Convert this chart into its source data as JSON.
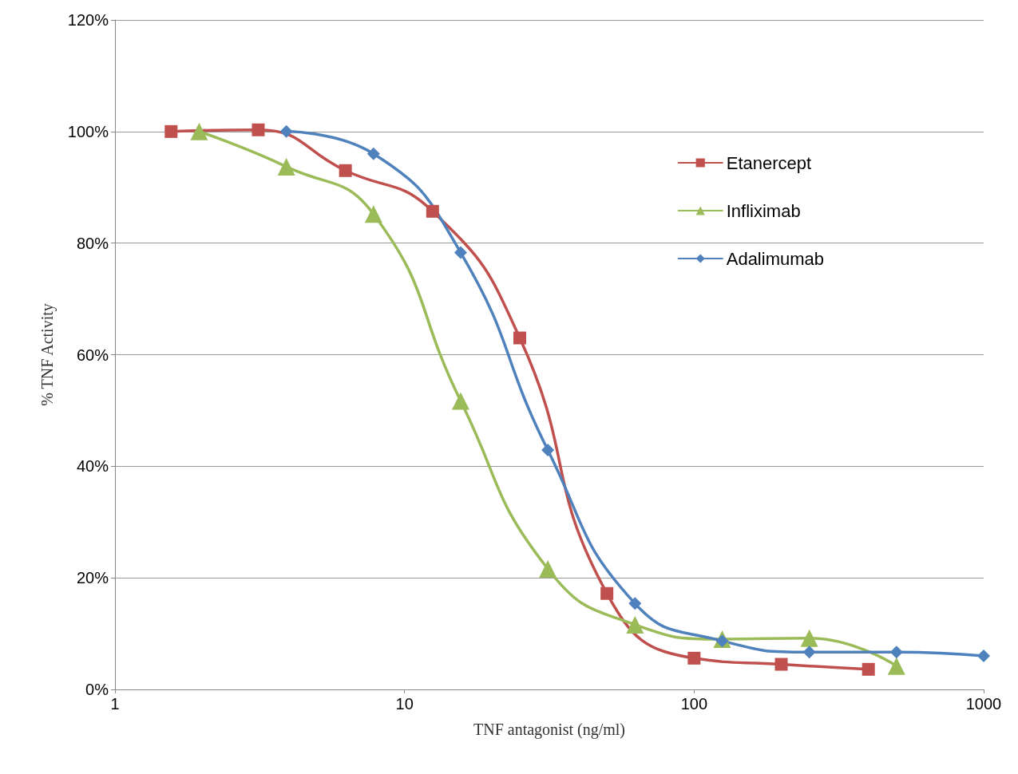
{
  "chart_data": {
    "type": "line",
    "xlabel": "TNF antagonist (ng/ml)",
    "ylabel": "% TNF Activity",
    "log": "x",
    "xlim": [
      1,
      1000
    ],
    "xticks": [
      1,
      10,
      100,
      1000
    ],
    "ylim": [
      0,
      120
    ],
    "yticks": [
      {
        "value": 0,
        "label": "0%"
      },
      {
        "value": 20,
        "label": "20%"
      },
      {
        "value": 40,
        "label": "40%"
      },
      {
        "value": 60,
        "label": "60%"
      },
      {
        "value": 80,
        "label": "80%"
      },
      {
        "value": 100,
        "label": "100%"
      },
      {
        "value": 120,
        "label": "120%"
      }
    ],
    "grid": "y",
    "legend": "right",
    "line_style": "solid",
    "series": [
      {
        "name": "Etanercept",
        "color": "#c0504d",
        "marker": "square",
        "x": [
          1.5625,
          3.125,
          6.25,
          12.5,
          25,
          50,
          100,
          200,
          400
        ],
        "values": [
          100,
          100.3,
          93,
          85.7,
          63,
          17.2,
          5.6,
          4.5,
          3.6
        ]
      },
      {
        "name": "Infliximab",
        "color": "#9bbb59",
        "marker": "triangle",
        "x": [
          1.953,
          3.906,
          7.8125,
          15.625,
          31.25,
          62.5,
          125,
          250,
          500
        ],
        "values": [
          100,
          93.7,
          85.2,
          51.7,
          21.6,
          11.6,
          9,
          9.2,
          4.2
        ]
      },
      {
        "name": "Adalimumab",
        "color": "#4f81bd",
        "marker": "diamond",
        "x": [
          3.906,
          7.8125,
          15.625,
          31.25,
          62.5,
          125,
          250,
          500,
          1000
        ],
        "values": [
          100,
          96,
          78.3,
          42.9,
          15.4,
          8.7,
          6.7,
          6.7,
          6.0
        ]
      }
    ]
  }
}
